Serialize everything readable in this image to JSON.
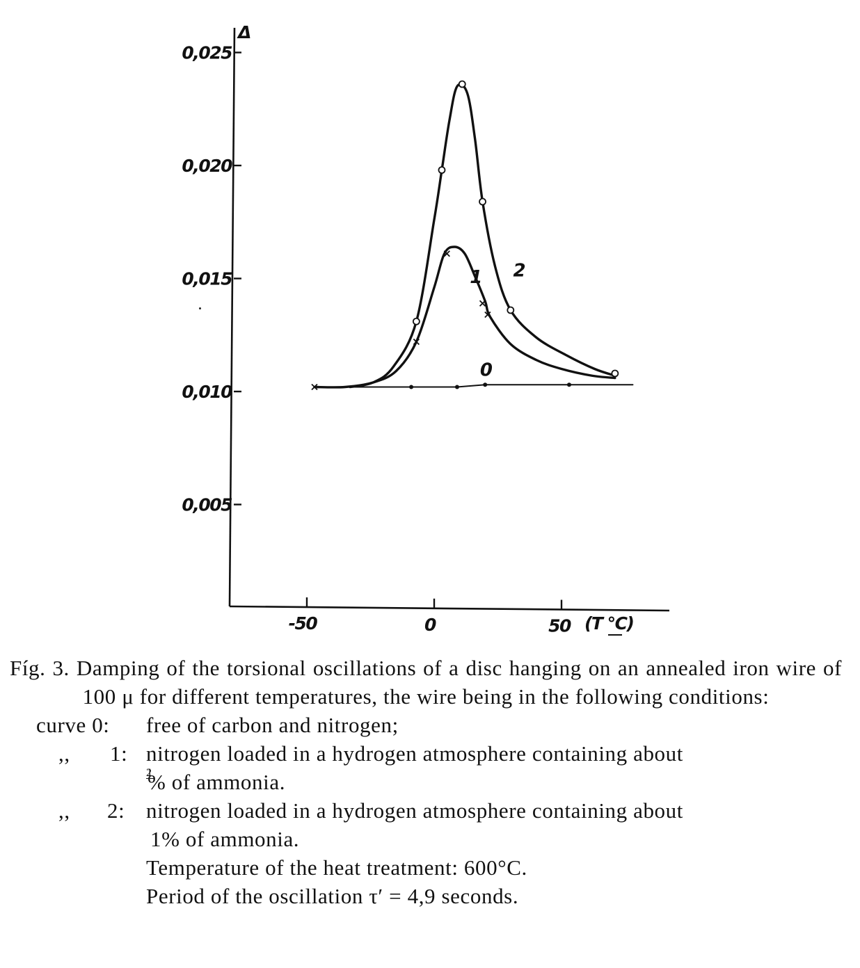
{
  "chart_data": {
    "type": "line",
    "ylabel": "Δ",
    "xlabel": "(T °C)",
    "y_ticks": [
      "0,005",
      "0,010",
      "0,015",
      "0,020",
      "0,025"
    ],
    "x_ticks": [
      "-50",
      "0",
      "50"
    ],
    "ylim": [
      0,
      0.026
    ],
    "xlim": [
      -80,
      93
    ],
    "series": [
      {
        "name": "0",
        "x": [
          -47,
          -9,
          9,
          20,
          53,
          78
        ],
        "y": [
          0.0102,
          0.0102,
          0.0102,
          0.0103,
          0.0103,
          0.0103
        ]
      },
      {
        "name": "1",
        "x": [
          -47,
          -35,
          -24,
          -15,
          -7,
          0,
          4,
          8,
          12,
          16,
          20,
          22,
          30,
          40,
          50,
          62,
          71
        ],
        "y": [
          0.0102,
          0.0102,
          0.0104,
          0.0109,
          0.0122,
          0.0146,
          0.0161,
          0.0164,
          0.0161,
          0.0151,
          0.014,
          0.0133,
          0.0121,
          0.0114,
          0.011,
          0.0107,
          0.0106
        ]
      },
      {
        "name": "2",
        "x": [
          -33,
          -24,
          -16,
          -7,
          0,
          3,
          6,
          9,
          13,
          16,
          19,
          24,
          30,
          40,
          52,
          63,
          71
        ],
        "y": [
          0.0102,
          0.0104,
          0.0111,
          0.0131,
          0.0176,
          0.0198,
          0.022,
          0.0235,
          0.0232,
          0.0212,
          0.0184,
          0.0155,
          0.0136,
          0.0124,
          0.0116,
          0.011,
          0.0107
        ]
      }
    ],
    "markers": {
      "0": {
        "x": [
          -9,
          9,
          20,
          53
        ],
        "y": [
          0.0102,
          0.0102,
          0.0103,
          0.0103
        ]
      },
      "1": {
        "x": [
          -47,
          -7,
          5,
          19,
          21
        ],
        "y": [
          0.0102,
          0.0122,
          0.0161,
          0.0139,
          0.0134
        ]
      },
      "2": {
        "x": [
          -7,
          3,
          11,
          19,
          30,
          71
        ],
        "y": [
          0.0131,
          0.0198,
          0.0236,
          0.0184,
          0.0136,
          0.0108
        ]
      }
    },
    "curve_labels": [
      "0",
      "1",
      "2"
    ]
  },
  "caption": {
    "main": "Fíg. 3. Damping of the torsional oscillations of a disc hanging on an annealed iron wire of 100 μ for different temperatures, the wire being in the following conditions:",
    "curve0_prefix": "curve 0:",
    "curve0_text": "free of carbon and nitrogen;",
    "ditto1": ",,",
    "num1": "1:",
    "curve1_text": "nitrogen loaded in a hydrogen atmosphere containing about",
    "frac_num": "1",
    "frac_den": "2",
    "curve1_cont": "% of ammonia.",
    "ditto2": ",,",
    "num2": "2:",
    "curve2_text": "nitrogen loaded in a hydrogen atmosphere containing about",
    "curve2_cont": "1% of ammonia.",
    "temperature": "Temperature of the heat treatment: 600°C.",
    "period": "Period of the oscillation τ′ = 4,9 seconds."
  }
}
